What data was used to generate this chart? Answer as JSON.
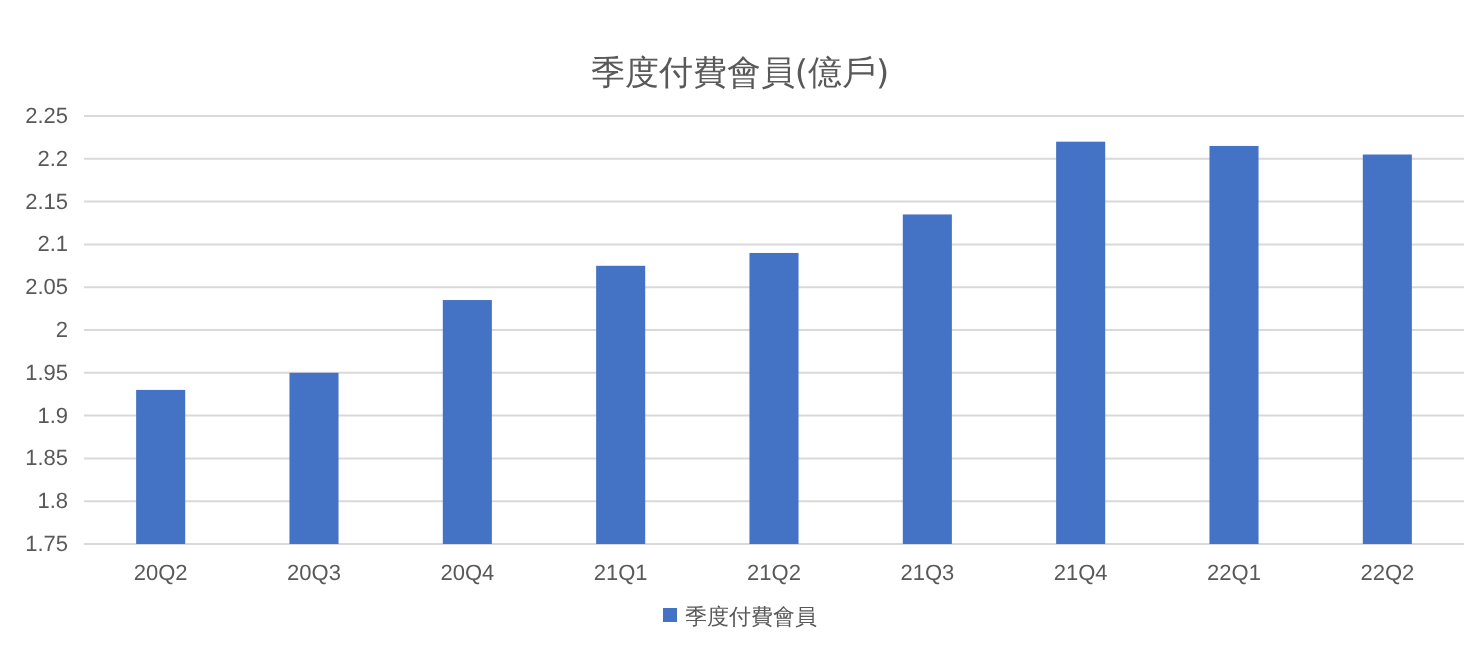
{
  "chart_data": {
    "type": "bar",
    "title": "季度付費會員(億戶)",
    "categories": [
      "20Q2",
      "20Q3",
      "20Q4",
      "21Q1",
      "21Q2",
      "21Q3",
      "21Q4",
      "22Q1",
      "22Q2"
    ],
    "series": [
      {
        "name": "季度付費會員",
        "color": "#4472c4",
        "values": [
          1.93,
          1.95,
          2.035,
          2.075,
          2.09,
          2.135,
          2.22,
          2.215,
          2.205
        ]
      }
    ],
    "ylim": [
      1.75,
      2.25
    ],
    "yticks": [
      1.75,
      1.8,
      1.85,
      1.9,
      1.95,
      2,
      2.05,
      2.1,
      2.15,
      2.2,
      2.25
    ],
    "grid": "y",
    "legend": "bottom"
  }
}
